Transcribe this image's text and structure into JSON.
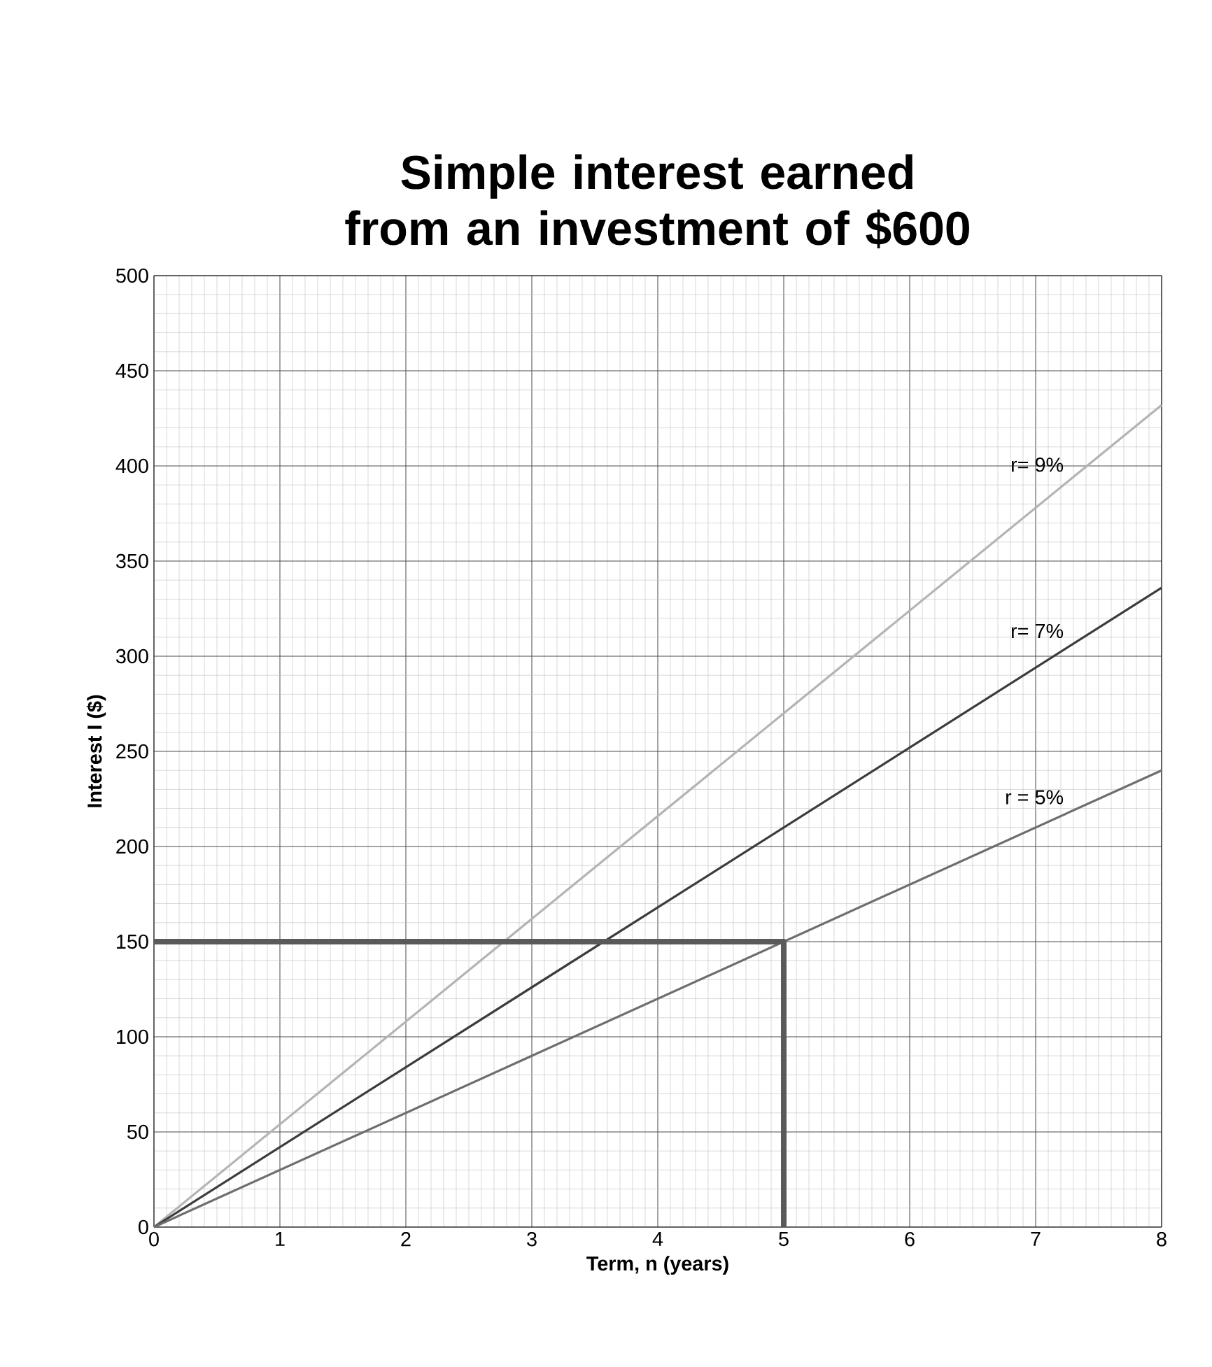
{
  "chart_data": {
    "type": "line",
    "title": "Simple interest earned from an investment of $600",
    "xlabel": "Term, n (years)",
    "ylabel": "Interest I ($)",
    "xlim": [
      0,
      8
    ],
    "ylim": [
      0,
      500
    ],
    "xticks": [
      0,
      1,
      2,
      3,
      4,
      5,
      6,
      7,
      8
    ],
    "yticks": [
      0,
      50,
      100,
      150,
      200,
      250,
      300,
      350,
      400,
      450,
      500
    ],
    "grid": true,
    "marker": "none",
    "line_style": "solid",
    "series": [
      {
        "name": "r= 9%",
        "color": "#b4b4b4",
        "x": [
          0,
          8
        ],
        "values": [
          0,
          432
        ]
      },
      {
        "name": "r= 7%",
        "color": "#3c3c3c",
        "x": [
          0,
          8
        ],
        "values": [
          0,
          336
        ]
      },
      {
        "name": "r = 5%",
        "color": "#6e6e6e",
        "x": [
          0,
          8
        ],
        "values": [
          0,
          240
        ]
      },
      {
        "color": "#5a5a5a",
        "x": [
          0,
          5,
          5
        ],
        "values": [
          150,
          150,
          0
        ]
      }
    ]
  }
}
